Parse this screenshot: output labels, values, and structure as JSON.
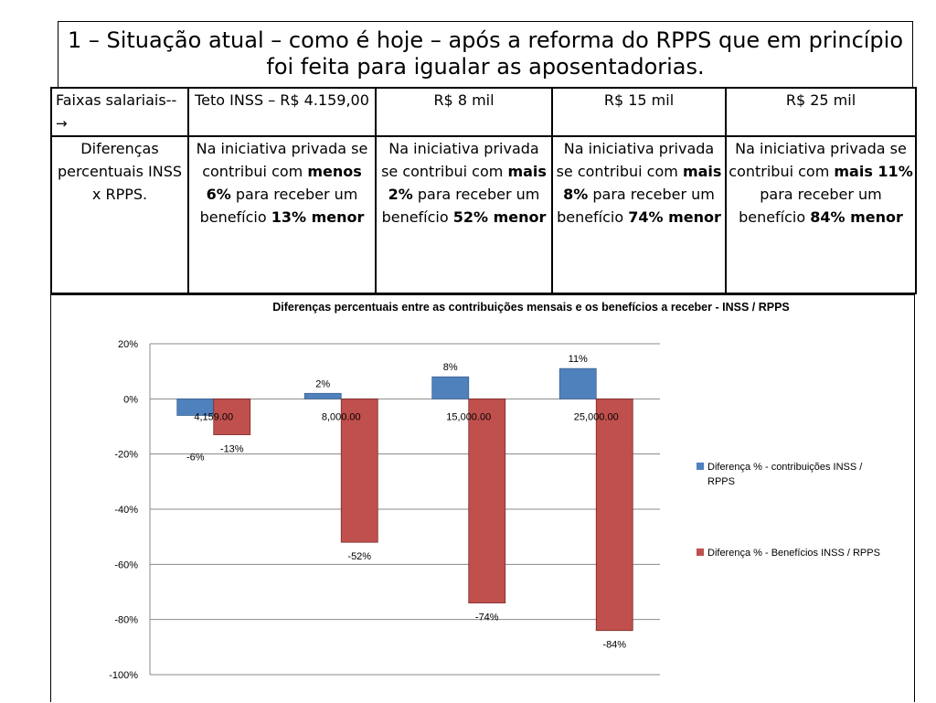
{
  "slide": {
    "title": "1 – Situação atual – como é hoje – após a reforma do RPPS que em princípio foi feita para igualar as aposentadorias."
  },
  "table": {
    "header": {
      "col0": "Faixas salariais--",
      "col0_arrow": "→",
      "col1": "Teto INSS – R$ 4.159,00",
      "col2": "R$ 8 mil",
      "col3": "R$ 15 mil",
      "col4": "R$ 25 mil"
    },
    "row": {
      "label": "Diferenças percentuais INSS x RPPS.",
      "cells": [
        {
          "pre": "Na iniciativa privada se contribui com ",
          "b1": "menos 6%",
          "mid": " para receber um benefício ",
          "b2": "13% menor"
        },
        {
          "pre": "Na iniciativa privada se contribui com ",
          "b1": "mais 2%",
          "mid": " para receber um benefício ",
          "b2": "52% menor"
        },
        {
          "pre": "Na iniciativa privada se contribui com ",
          "b1": "mais 8%",
          "mid": " para receber um benefício ",
          "b2": "74% menor"
        },
        {
          "pre": "Na iniciativa privada se contribui com ",
          "b1": "mais 11%",
          "mid": " para receber um benefício ",
          "b2": "84% menor"
        }
      ]
    }
  },
  "colors": {
    "series_contrib": "#4f81bd",
    "series_benef": "#c0504d",
    "gridline": "#888888"
  },
  "chart_data": {
    "type": "bar",
    "title": "Diferenças  percentuais entre as contribuições mensais e os benefícios a receber - INSS / RPPS",
    "categories": [
      "4,159.00",
      "8,000.00",
      "15,000.00",
      "25,000.00"
    ],
    "series": [
      {
        "name": "Diferença % - contribuições INSS / RPPS",
        "values": [
          -6,
          2,
          8,
          11
        ],
        "labels": [
          "-6%",
          "2%",
          "8%",
          "11%"
        ]
      },
      {
        "name": "Diferença % -  Benefícios INSS / RPPS",
        "values": [
          -13,
          -52,
          -74,
          -84
        ],
        "labels": [
          "-13%",
          "-52%",
          "-74%",
          "-84%"
        ]
      }
    ],
    "ylim": [
      -100,
      20
    ],
    "yticks": [
      20,
      0,
      -20,
      -40,
      -60,
      -80,
      -100
    ],
    "ytick_labels": [
      "20%",
      "0%",
      "-20%",
      "-40%",
      "-60%",
      "-80%",
      "-100%"
    ],
    "xlabel": "",
    "ylabel": "",
    "grid": true,
    "legend": "right"
  }
}
